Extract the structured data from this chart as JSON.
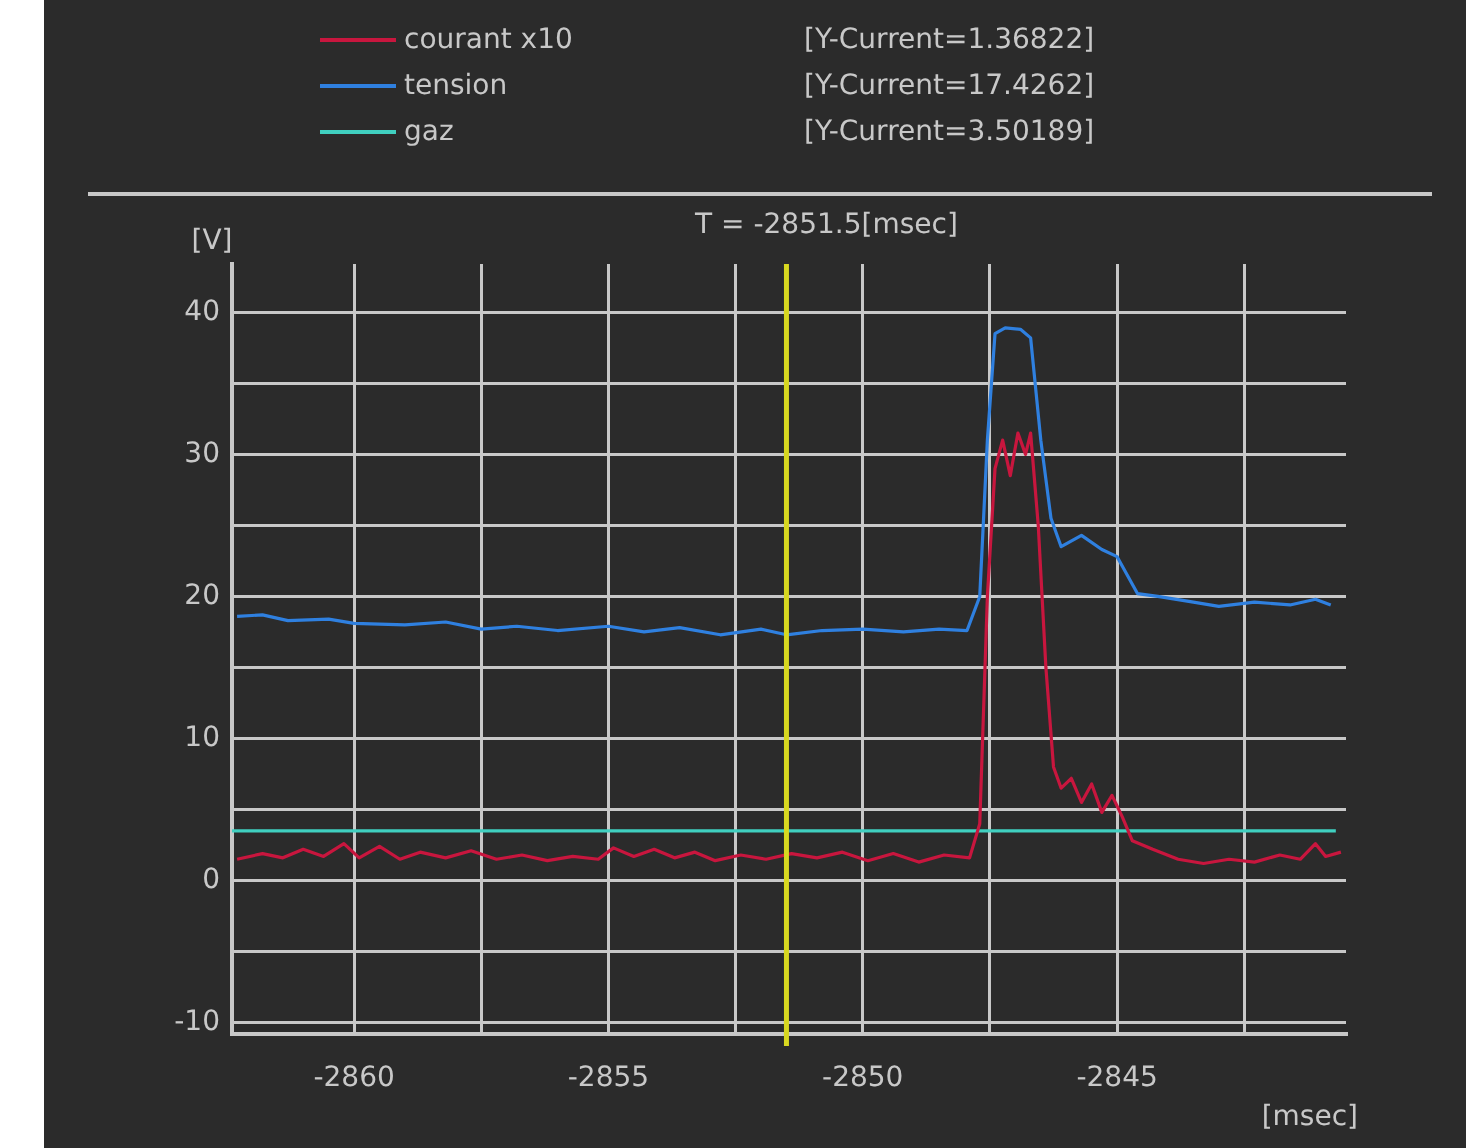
{
  "chart_data": {
    "type": "line",
    "xlabel": "[msec]",
    "ylabel": "[V]",
    "xlim": [
      -2862.4,
      -2840.5
    ],
    "ylim": [
      -10.8,
      43.4
    ],
    "xticks": [
      -2860,
      {
        "value": -2857.5,
        "label": null
      },
      -2855,
      {
        "value": -2852.5,
        "label": null
      },
      -2850,
      {
        "value": -2847.5,
        "label": null
      },
      -2845,
      {
        "value": -2842.5,
        "label": null
      }
    ],
    "yticks": [
      -10,
      {
        "value": -5,
        "label": null
      },
      0,
      {
        "value": 5,
        "label": null
      },
      10,
      {
        "value": 15,
        "label": null
      },
      20,
      {
        "value": 25,
        "label": null
      },
      30,
      {
        "value": 35,
        "label": null
      },
      40
    ],
    "grid": true,
    "legend": "top",
    "marker": "none",
    "line_style": "solid",
    "annotations": [
      "[Y-Current=1.36822]",
      "[Y-Current=17.4262]",
      "[Y-Current=3.50189]"
    ],
    "ref_lines": [
      {
        "axis": "x",
        "value": -2851.5,
        "label": "T = -2851.5[msec]",
        "color": "#d8d820"
      }
    ],
    "series": [
      {
        "name": "courant x10",
        "color": "#c8163e",
        "x": [
          -2862.3,
          -2861.8,
          -2861.4,
          -2861,
          -2860.6,
          -2860.2,
          -2859.9,
          -2859.5,
          -2859.1,
          -2858.7,
          -2858.2,
          -2857.7,
          -2857.2,
          -2856.7,
          -2856.2,
          -2855.7,
          -2855.2,
          -2854.9,
          -2854.5,
          -2854.1,
          -2853.7,
          -2853.3,
          -2852.9,
          -2852.4,
          -2851.9,
          -2851.4,
          -2850.9,
          -2850.4,
          -2849.9,
          -2849.4,
          -2848.9,
          -2848.4,
          -2847.9,
          -2847.7,
          -2847.55,
          -2847.4,
          -2847.25,
          -2847.1,
          -2846.95,
          -2846.8,
          -2846.7,
          -2846.55,
          -2846.4,
          -2846.25,
          -2846.1,
          -2845.9,
          -2845.7,
          -2845.5,
          -2845.3,
          -2845.1,
          -2844.9,
          -2844.7,
          -2844.3,
          -2843.8,
          -2843.3,
          -2842.8,
          -2842.3,
          -2841.8,
          -2841.4,
          -2841.1,
          -2840.9,
          -2840.6
        ],
        "values": [
          1.5,
          1.9,
          1.6,
          2.2,
          1.7,
          2.6,
          1.6,
          2.4,
          1.5,
          2.0,
          1.6,
          2.1,
          1.5,
          1.8,
          1.4,
          1.7,
          1.5,
          2.3,
          1.7,
          2.2,
          1.6,
          2.0,
          1.4,
          1.8,
          1.5,
          1.9,
          1.6,
          2.0,
          1.4,
          1.9,
          1.3,
          1.8,
          1.6,
          4,
          20,
          29,
          31,
          28.5,
          31.5,
          30,
          31.5,
          25,
          15,
          8,
          6.5,
          7.2,
          5.5,
          6.8,
          4.8,
          6.0,
          4.5,
          2.8,
          2.2,
          1.5,
          1.2,
          1.5,
          1.3,
          1.8,
          1.5,
          2.6,
          1.7,
          2.0
        ]
      },
      {
        "name": "tension",
        "color": "#2f80e0",
        "x": [
          -2862.3,
          -2861.8,
          -2861.3,
          -2860.5,
          -2860,
          -2859,
          -2858.2,
          -2857.5,
          -2856.8,
          -2856,
          -2855,
          -2854.3,
          -2853.6,
          -2852.8,
          -2852,
          -2851.5,
          -2850.8,
          -2850,
          -2849.2,
          -2848.5,
          -2847.95,
          -2847.7,
          -2847.55,
          -2847.4,
          -2847.2,
          -2846.9,
          -2846.7,
          -2846.5,
          -2846.3,
          -2846.1,
          -2845.7,
          -2845.3,
          -2845,
          -2844.6,
          -2844.2,
          -2843.5,
          -2843,
          -2842.3,
          -2841.6,
          -2841.1,
          -2840.8
        ],
        "values": [
          18.6,
          18.7,
          18.3,
          18.4,
          18.1,
          18.0,
          18.2,
          17.7,
          17.9,
          17.6,
          17.9,
          17.5,
          17.8,
          17.3,
          17.7,
          17.3,
          17.6,
          17.7,
          17.5,
          17.7,
          17.6,
          20,
          31,
          38.5,
          38.9,
          38.8,
          38.2,
          31,
          25.5,
          23.5,
          24.3,
          23.3,
          22.8,
          20.2,
          20,
          19.6,
          19.3,
          19.6,
          19.4,
          19.8,
          19.4
        ]
      },
      {
        "name": "gaz",
        "color": "#40d0c0",
        "x": [
          -2862.4,
          -2840.7
        ],
        "values": [
          3.5,
          3.5
        ]
      }
    ]
  }
}
